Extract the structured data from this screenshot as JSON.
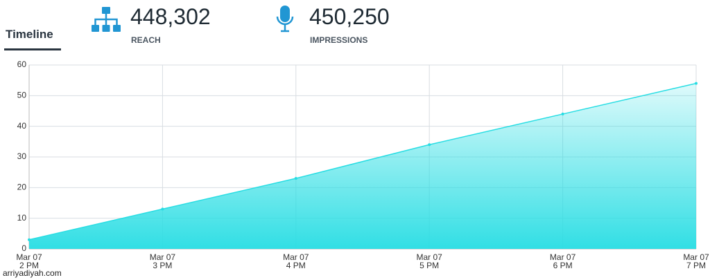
{
  "header": {
    "tab": "Timeline",
    "stats": [
      {
        "value": "448,302",
        "label": "REACH"
      },
      {
        "value": "450,250",
        "label": "IMPRESSIONS"
      }
    ]
  },
  "chart_data": {
    "type": "area",
    "categories": [
      "Mar 07\n2 PM",
      "Mar 07\n3 PM",
      "Mar 07\n4 PM",
      "Mar 07\n5 PM",
      "Mar 07\n6 PM",
      "Mar 07\n7 PM"
    ],
    "values": [
      3,
      13,
      23,
      34,
      44,
      54
    ],
    "color": "#26dde3",
    "ylim": [
      0,
      60
    ],
    "yticks": [
      0,
      10,
      20,
      30,
      40,
      50,
      60
    ],
    "grid": true
  },
  "watermark": "arriyadiyah.com"
}
